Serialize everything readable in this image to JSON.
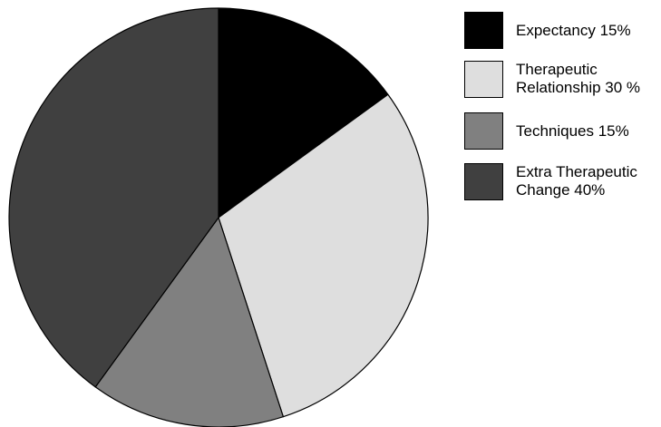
{
  "chart_data": {
    "type": "pie",
    "title": "",
    "start_angle_deg": 0,
    "direction": "clockwise",
    "slices": [
      {
        "label": "Expectancy 15%",
        "value": 15,
        "color": "#000000"
      },
      {
        "label": "Therapeutic\nRelationship 30 %",
        "value": 30,
        "color": "#dedede"
      },
      {
        "label": "Techniques 15%",
        "value": 15,
        "color": "#808080"
      },
      {
        "label": "Extra Therapeutic\nChange 40%",
        "value": 40,
        "color": "#404040"
      }
    ],
    "legend_position": "right"
  }
}
